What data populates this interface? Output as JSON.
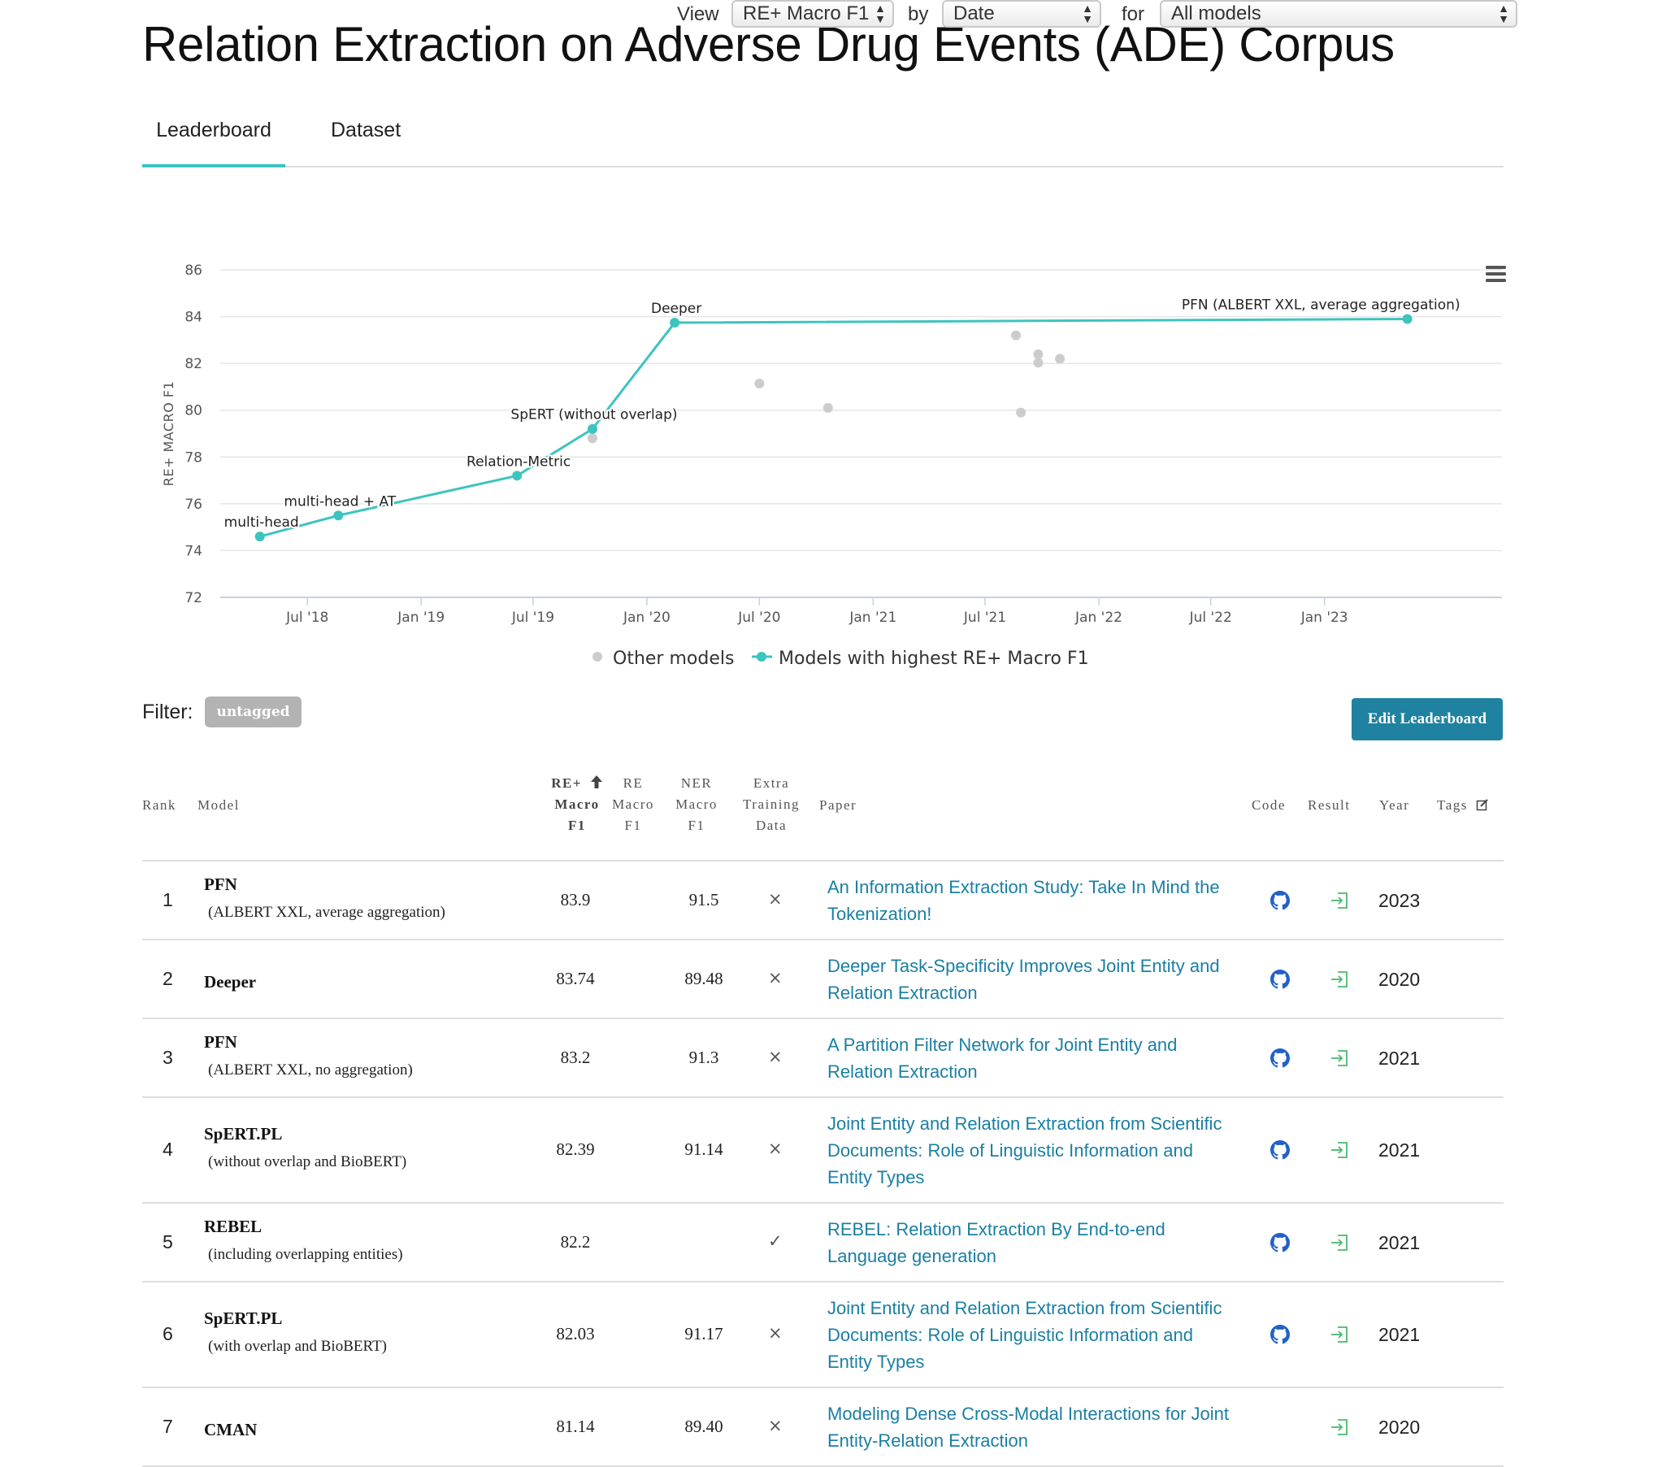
{
  "page": {
    "title": "Relation Extraction on Adverse Drug Events (ADE) Corpus"
  },
  "tabs": [
    {
      "label": "Leaderboard",
      "active": true
    },
    {
      "label": "Dataset",
      "active": false
    }
  ],
  "controls": {
    "view_label": "View",
    "view_value": "RE+ Macro F1",
    "by_label": "by",
    "by_value": "Date",
    "for_label": "for",
    "for_value": "All models"
  },
  "chart_data": {
    "type": "scatter",
    "ylabel": "RE+ MACRO F1",
    "xlabel": "",
    "ylim": [
      72,
      86
    ],
    "yticks": [
      72,
      74,
      76,
      78,
      80,
      82,
      84,
      86
    ],
    "xlim": [
      "2018-02-10",
      "2023-10-15"
    ],
    "xticks": [
      {
        "date": "2018-07-01",
        "label": "Jul '18"
      },
      {
        "date": "2019-01-01",
        "label": "Jan '19"
      },
      {
        "date": "2019-07-01",
        "label": "Jul '19"
      },
      {
        "date": "2020-01-01",
        "label": "Jan '20"
      },
      {
        "date": "2020-07-01",
        "label": "Jul '20"
      },
      {
        "date": "2021-01-01",
        "label": "Jan '21"
      },
      {
        "date": "2021-07-01",
        "label": "Jul '21"
      },
      {
        "date": "2022-01-01",
        "label": "Jan '22"
      },
      {
        "date": "2022-07-01",
        "label": "Jul '22"
      },
      {
        "date": "2023-01-01",
        "label": "Jan '23"
      }
    ],
    "grid": true,
    "legend": {
      "placement": "bottom",
      "items": [
        "Other models",
        "Models with highest RE+ Macro F1"
      ]
    },
    "colors": {
      "best": "#3cc4bf",
      "other": "#cccccc"
    },
    "series": [
      {
        "name": "Models with highest RE+ Macro F1",
        "points": [
          {
            "date": "2018-04-15",
            "value": 74.6,
            "label": "multi-head"
          },
          {
            "date": "2018-08-20",
            "value": 75.5,
            "label": "multi-head + AT"
          },
          {
            "date": "2019-06-05",
            "value": 77.2,
            "label": "Relation-Metric"
          },
          {
            "date": "2019-10-05",
            "value": 79.2,
            "label": "SpERT (without overlap)"
          },
          {
            "date": "2020-02-15",
            "value": 83.74,
            "label": "Deeper"
          },
          {
            "date": "2023-05-15",
            "value": 83.9,
            "label": "PFN (ALBERT XXL, average aggregation)"
          }
        ]
      },
      {
        "name": "Other models",
        "points": [
          {
            "date": "2019-10-05",
            "value": 78.8
          },
          {
            "date": "2020-07-01",
            "value": 81.14
          },
          {
            "date": "2020-10-20",
            "value": 80.1
          },
          {
            "date": "2021-08-20",
            "value": 83.2
          },
          {
            "date": "2021-08-28",
            "value": 79.9
          },
          {
            "date": "2021-09-25",
            "value": 82.39
          },
          {
            "date": "2021-09-25",
            "value": 82.03
          },
          {
            "date": "2021-10-30",
            "value": 82.2
          }
        ]
      }
    ]
  },
  "filter": {
    "label": "Filter:",
    "tag": "untagged"
  },
  "edit_button": {
    "label": "Edit Leaderboard"
  },
  "table": {
    "headers": {
      "rank": "Rank",
      "model": "Model",
      "re_plus": [
        "RE+",
        "Macro",
        "F1"
      ],
      "re": [
        "RE",
        "Macro",
        "F1"
      ],
      "ner": [
        "NER",
        "Macro",
        "F1"
      ],
      "extra": [
        "Extra",
        "Training",
        "Data"
      ],
      "paper": "Paper",
      "code": "Code",
      "result": "Result",
      "year": "Year",
      "tags": "Tags"
    },
    "rows": [
      {
        "rank": "1",
        "model": "PFN",
        "sub": "(ALBERT XXL, average aggregation)",
        "re_plus": "83.9",
        "re": "",
        "ner": "91.5",
        "extra": "×",
        "paper": [
          "An Information Extraction Study: Take In Mind the",
          "Tokenization!"
        ],
        "has_code": true,
        "year": "2023"
      },
      {
        "rank": "2",
        "model": "Deeper",
        "sub": "",
        "re_plus": "83.74",
        "re": "",
        "ner": "89.48",
        "extra": "×",
        "paper": [
          "Deeper Task-Specificity Improves Joint Entity and",
          "Relation Extraction"
        ],
        "has_code": true,
        "year": "2020"
      },
      {
        "rank": "3",
        "model": "PFN",
        "sub": "(ALBERT XXL, no aggregation)",
        "re_plus": "83.2",
        "re": "",
        "ner": "91.3",
        "extra": "×",
        "paper": [
          "A Partition Filter Network for Joint Entity and",
          "Relation Extraction"
        ],
        "has_code": true,
        "year": "2021"
      },
      {
        "rank": "4",
        "model": "SpERT.PL",
        "sub": "(without overlap and BioBERT)",
        "re_plus": "82.39",
        "re": "",
        "ner": "91.14",
        "extra": "×",
        "paper": [
          "Joint Entity and Relation Extraction from Scientific",
          "Documents: Role of Linguistic Information and",
          "Entity Types"
        ],
        "has_code": true,
        "year": "2021"
      },
      {
        "rank": "5",
        "model": "REBEL",
        "sub": "(including overlapping entities)",
        "re_plus": "82.2",
        "re": "",
        "ner": "",
        "extra": "✓",
        "paper": [
          "REBEL: Relation Extraction By End-to-end",
          "Language generation"
        ],
        "has_code": true,
        "year": "2021"
      },
      {
        "rank": "6",
        "model": "SpERT.PL",
        "sub": "(with overlap and BioBERT)",
        "re_plus": "82.03",
        "re": "",
        "ner": "91.17",
        "extra": "×",
        "paper": [
          "Joint Entity and Relation Extraction from Scientific",
          "Documents: Role of Linguistic Information and",
          "Entity Types"
        ],
        "has_code": true,
        "year": "2021"
      },
      {
        "rank": "7",
        "model": "CMAN",
        "sub": "",
        "re_plus": "81.14",
        "re": "",
        "ner": "89.40",
        "extra": "×",
        "paper": [
          "Modeling Dense Cross-Modal Interactions for Joint",
          "Entity-Relation Extraction"
        ],
        "has_code": false,
        "year": "2020"
      }
    ]
  },
  "icons": {
    "code": "github-icon",
    "result": "result-enter-icon",
    "tags_edit": "edit-icon",
    "sort": "sort-arrow-up-icon",
    "chart_menu": "hamburger-menu-icon"
  }
}
